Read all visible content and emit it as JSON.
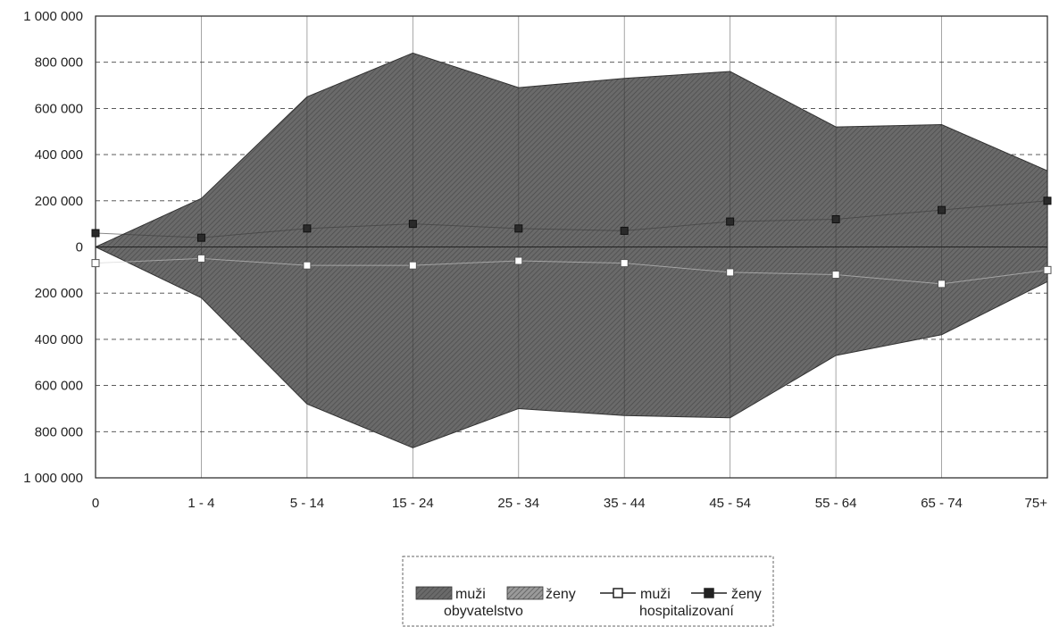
{
  "chart_data": {
    "type": "area",
    "categories": [
      "0",
      "1 - 4",
      "5 - 14",
      "15 - 24",
      "25 - 34",
      "35 - 44",
      "45 - 54",
      "55 - 64",
      "65 - 74",
      "75+"
    ],
    "y_tick_labels": [
      "1 000 000",
      "800 000",
      "600 000",
      "400 000",
      "200 000",
      "0",
      "200 000",
      "400 000",
      "600 000",
      "800 000",
      "1 000 000"
    ],
    "ylim": [
      -1000000,
      1000000
    ],
    "grid": true,
    "legend_position": "bottom-center",
    "series": [
      {
        "name": "muži",
        "group": "obyvatelstvo",
        "kind": "area",
        "color": "#5a5a5a",
        "values": [
          0,
          210000,
          650000,
          840000,
          690000,
          730000,
          760000,
          520000,
          530000,
          330000
        ]
      },
      {
        "name": "ženy",
        "group": "obyvatelstvo",
        "kind": "area",
        "color": "#666666",
        "values": [
          0,
          -220000,
          -680000,
          -870000,
          -700000,
          -730000,
          -740000,
          -470000,
          -380000,
          -150000
        ]
      },
      {
        "name": "muži",
        "group": "hospitalizovaní",
        "kind": "line",
        "color": "#ffffff",
        "values": [
          -70000,
          -50000,
          -80000,
          -80000,
          -60000,
          -70000,
          -110000,
          -120000,
          -160000,
          -100000
        ]
      },
      {
        "name": "ženy",
        "group": "hospitalizovaní",
        "kind": "line",
        "color": "#333333",
        "values": [
          60000,
          40000,
          80000,
          100000,
          80000,
          70000,
          110000,
          120000,
          160000,
          200000
        ]
      }
    ]
  },
  "legend": {
    "area_male": "muži",
    "area_female": "ženy",
    "area_group": "obyvatelstvo",
    "line_male": "muži",
    "line_female": "ženy",
    "line_group": "hospitalizovaní"
  }
}
